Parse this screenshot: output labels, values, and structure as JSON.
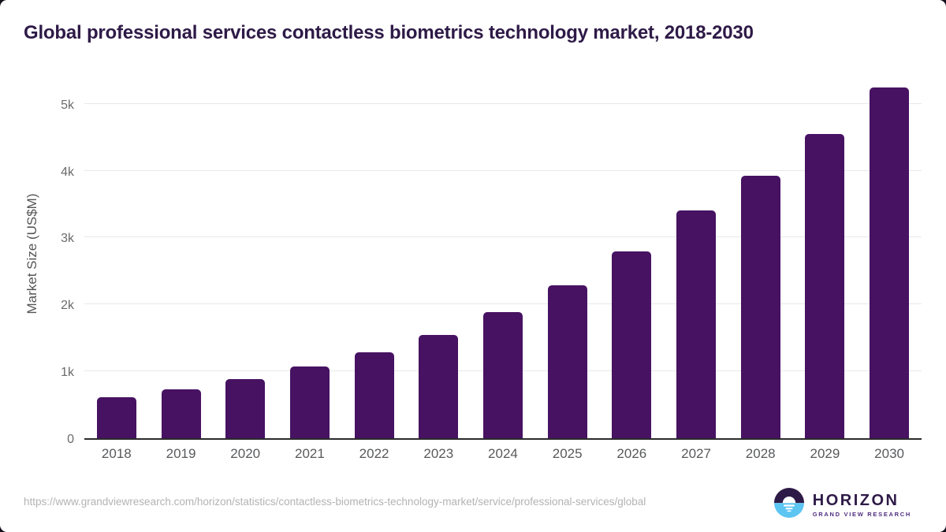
{
  "page": {
    "title": "Global professional services contactless biometrics technology market, 2018-2030"
  },
  "chart_data": {
    "type": "bar",
    "title": "Global professional services contactless biometrics technology market, 2018-2030",
    "categories": [
      "2018",
      "2019",
      "2020",
      "2021",
      "2022",
      "2023",
      "2024",
      "2025",
      "2026",
      "2027",
      "2028",
      "2029",
      "2030"
    ],
    "values": [
      614,
      731,
      880,
      1075,
      1280,
      1545,
      1885,
      2290,
      2795,
      3405,
      3925,
      4545,
      5245
    ],
    "series_name": "Market Size",
    "xlabel": "",
    "ylabel": "Market Size (US$M)",
    "ylim": [
      0,
      5420
    ],
    "yticks": [
      {
        "label": "0",
        "value": 0
      },
      {
        "label": "1k",
        "value": 1000
      },
      {
        "label": "2k",
        "value": 2000
      },
      {
        "label": "3k",
        "value": 3000
      },
      {
        "label": "4k",
        "value": 4000
      },
      {
        "label": "5k",
        "value": 5000
      }
    ],
    "grid": "horizontal",
    "legend": "none",
    "bar_color": "#471262"
  },
  "footer": {
    "source_url": "https://www.grandviewresearch.com/horizon/statistics/contactless-biometrics-technology-market/service/professional-services/global",
    "logo": {
      "name": "HORIZON",
      "tagline": "GRAND VIEW RESEARCH"
    }
  },
  "colors": {
    "bar": "#471262",
    "title": "#2e1a47",
    "grid": "#e8e8e8",
    "axis_line": "#2b2b2b",
    "tick_text": "#6b6b6b",
    "xlabel_text": "#58595b",
    "url_text": "#b3b3b3",
    "logo_purple": "#2e1a47",
    "logo_blue": "#5cc5f2",
    "logo_sub": "#4f2d7f"
  }
}
